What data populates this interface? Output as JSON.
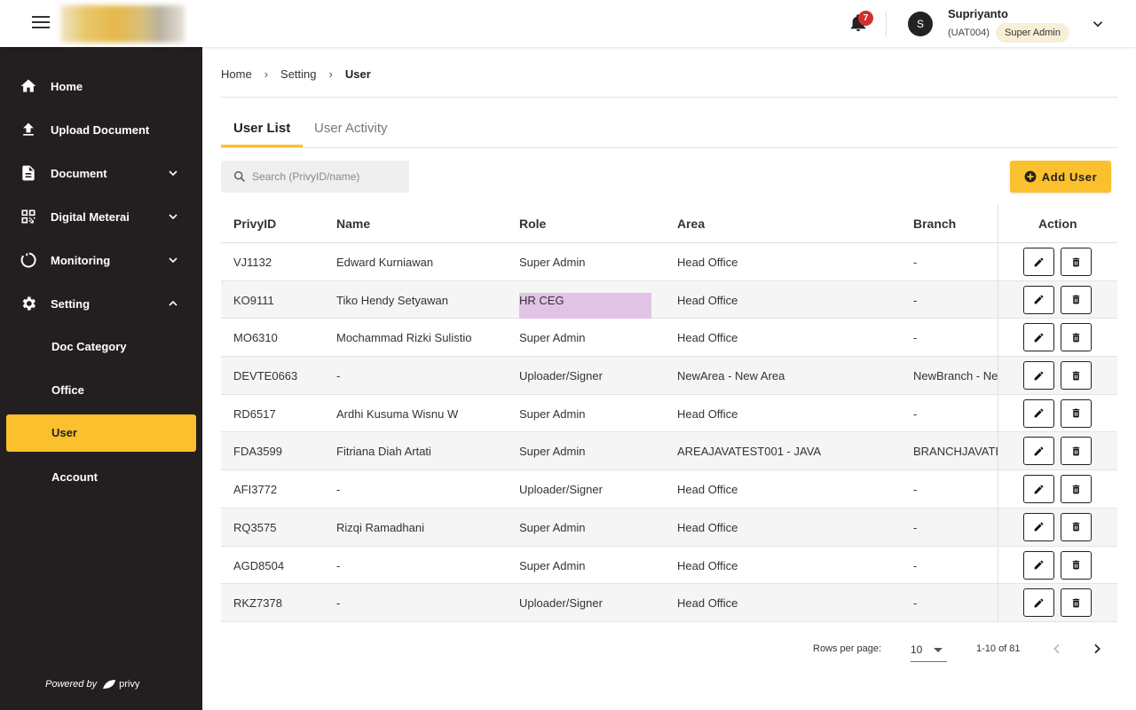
{
  "header": {
    "notification_count": "7",
    "user": {
      "initial": "S",
      "name": "Supriyanto",
      "code": "(UAT004)",
      "role": "Super Admin"
    }
  },
  "sidebar": {
    "items": [
      {
        "label": "Home",
        "icon": "home-icon"
      },
      {
        "label": "Upload Document",
        "icon": "upload-icon"
      },
      {
        "label": "Document",
        "icon": "document-icon",
        "expandable": true,
        "expanded": false
      },
      {
        "label": "Digital Meterai",
        "icon": "qr-code-icon",
        "expandable": true,
        "expanded": false
      },
      {
        "label": "Monitoring",
        "icon": "monitoring-icon",
        "expandable": true,
        "expanded": false
      },
      {
        "label": "Setting",
        "icon": "gear-icon",
        "expandable": true,
        "expanded": true
      }
    ],
    "sub_items": [
      {
        "label": "Doc Category",
        "active": false
      },
      {
        "label": "Office",
        "active": false
      },
      {
        "label": "User",
        "active": true
      },
      {
        "label": "Account",
        "active": false
      }
    ],
    "powered_by": "Powered by",
    "brand": "privy"
  },
  "breadcrumb": [
    "Home",
    "Setting",
    "User"
  ],
  "tabs": [
    {
      "label": "User List",
      "active": true
    },
    {
      "label": "User Activity",
      "active": false
    }
  ],
  "search": {
    "placeholder": "Search (PrivyID/name)",
    "value": ""
  },
  "add_button": "Add User",
  "table": {
    "columns": [
      "PrivyID",
      "Name",
      "Role",
      "Area",
      "Branch",
      "Action"
    ],
    "rows": [
      {
        "id": "VJ1132",
        "name": "Edward Kurniawan",
        "role": "Super Admin",
        "area": "Head Office",
        "branch": "-"
      },
      {
        "id": "KO9111",
        "name": "Tiko Hendy Setyawan",
        "role": "HR CEG",
        "area": "Head Office",
        "branch": "-"
      },
      {
        "id": "MO6310",
        "name": "Mochammad Rizki Sulistio",
        "role": "Super Admin",
        "area": "Head Office",
        "branch": "-"
      },
      {
        "id": "DEVTE0663",
        "name": "-",
        "role": "Uploader/Signer",
        "area": "NewArea - New Area",
        "branch": "NewBranch - Ne"
      },
      {
        "id": "RD6517",
        "name": "Ardhi Kusuma Wisnu W",
        "role": "Super Admin",
        "area": "Head Office",
        "branch": "-"
      },
      {
        "id": "FDA3599",
        "name": "Fitriana Diah Artati",
        "role": "Super Admin",
        "area": "AREAJAVATEST001 - JAVA",
        "branch": "BRANCHJAVATE"
      },
      {
        "id": "AFI3772",
        "name": "-",
        "role": "Uploader/Signer",
        "area": "Head Office",
        "branch": "-"
      },
      {
        "id": "RQ3575",
        "name": "Rizqi Ramadhani",
        "role": "Super Admin",
        "area": "Head Office",
        "branch": "-"
      },
      {
        "id": "AGD8504",
        "name": "-",
        "role": "Super Admin",
        "area": "Head Office",
        "branch": "-"
      },
      {
        "id": "RKZ7378",
        "name": "-",
        "role": "Uploader/Signer",
        "area": "Head Office",
        "branch": "-"
      }
    ]
  },
  "pagination": {
    "rows_per_page_label": "Rows per page:",
    "rows_per_page": "10",
    "range": "1-10 of 81"
  },
  "colors": {
    "accent": "#fbc02d",
    "sidebar_bg": "#231f20",
    "badge": "#d32f2f",
    "highlight": "#e1c3e6"
  }
}
